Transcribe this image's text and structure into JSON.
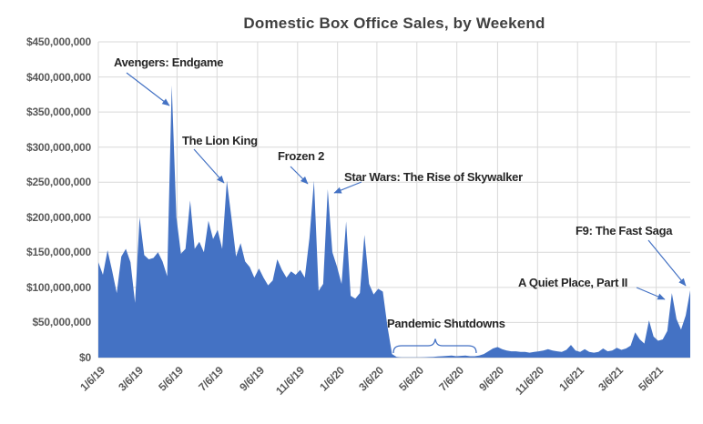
{
  "title": "Domestic Box Office Sales, by Weekend",
  "annotations": [
    {
      "id": "avengers",
      "label": "Avengers: Endgame",
      "week": "2019-04-28",
      "value_usd_millions": 388
    },
    {
      "id": "lion_king",
      "label": "The Lion King",
      "week": "2019-07-21",
      "value_usd_millions": 252
    },
    {
      "id": "frozen_2",
      "label": "Frozen 2",
      "week": "2019-12-01",
      "value_usd_millions": 252
    },
    {
      "id": "star_wars",
      "label": "Star Wars: The Rise of Skywalker",
      "week": "2019-12-22",
      "value_usd_millions": 240
    },
    {
      "id": "pandemic",
      "label": "Pandemic Shutdowns",
      "week_range": [
        "2020-03-29",
        "2020-08-02"
      ]
    },
    {
      "id": "quiet_place",
      "label": "A Quiet Place, Part II",
      "week": "2021-05-30",
      "value_usd_millions": 92
    },
    {
      "id": "f9",
      "label": "F9: The Fast Saga",
      "week": "2021-06-27",
      "value_usd_millions": 96
    }
  ],
  "chart_data": {
    "type": "area",
    "title": "Domestic Box Office Sales, by Weekend",
    "xlabel": "",
    "ylabel": "",
    "fill_color": "#4472C4",
    "annotation_color": "#4472C4",
    "gridline_color": "#D9D9D9",
    "grid": true,
    "legend": "none",
    "y_max_usd_millions": 450,
    "y_ticks": [
      {
        "label": "$450,000,000",
        "value": 450
      },
      {
        "label": "$400,000,000",
        "value": 400
      },
      {
        "label": "$350,000,000",
        "value": 350
      },
      {
        "label": "$300,000,000",
        "value": 300
      },
      {
        "label": "$250,000,000",
        "value": 250
      },
      {
        "label": "$200,000,000",
        "value": 200
      },
      {
        "label": "$150,000,000",
        "value": 150
      },
      {
        "label": "$100,000,000",
        "value": 100
      },
      {
        "label": "$50,000,000",
        "value": 50
      },
      {
        "label": "$0",
        "value": 0
      }
    ],
    "x_ticks": [
      {
        "label": "1/6/19",
        "day": 0
      },
      {
        "label": "3/6/19",
        "day": 59
      },
      {
        "label": "5/6/19",
        "day": 120
      },
      {
        "label": "7/6/19",
        "day": 181
      },
      {
        "label": "9/6/19",
        "day": 243
      },
      {
        "label": "11/6/19",
        "day": 304
      },
      {
        "label": "1/6/20",
        "day": 365
      },
      {
        "label": "3/6/20",
        "day": 425
      },
      {
        "label": "5/6/20",
        "day": 486
      },
      {
        "label": "7/6/20",
        "day": 547
      },
      {
        "label": "9/6/20",
        "day": 609
      },
      {
        "label": "11/6/20",
        "day": 670
      },
      {
        "label": "1/6/21",
        "day": 731
      },
      {
        "label": "3/6/21",
        "day": 790
      },
      {
        "label": "5/6/21",
        "day": 851
      }
    ],
    "x_total_days": 903,
    "x_unit": "weekly, Sundays from 1/6/19 through 6/27/21",
    "values_usd_millions": [
      136,
      118,
      153,
      124,
      92,
      144,
      155,
      136,
      78,
      200,
      146,
      140,
      142,
      150,
      137,
      116,
      388,
      200,
      148,
      155,
      224,
      155,
      165,
      150,
      195,
      169,
      182,
      155,
      252,
      200,
      144,
      163,
      137,
      129,
      114,
      127,
      114,
      103,
      110,
      140,
      125,
      114,
      123,
      118,
      125,
      114,
      170,
      252,
      95,
      105,
      240,
      150,
      130,
      105,
      194,
      88,
      84,
      92,
      175,
      105,
      90,
      98,
      94,
      45,
      5,
      1,
      0.3,
      0.2,
      0.2,
      0.3,
      0.3,
      0.5,
      0.8,
      1,
      1.5,
      2,
      2.5,
      3,
      2,
      2.5,
      3,
      2,
      2,
      3,
      5,
      9,
      13,
      15,
      12,
      10,
      9,
      9,
      8,
      8,
      7,
      8,
      9,
      10,
      12,
      10,
      9,
      8,
      11,
      18,
      10,
      8,
      12,
      8,
      7,
      8,
      13,
      9,
      10,
      14,
      11,
      13,
      17,
      36,
      26,
      20,
      53,
      30,
      24,
      26,
      38,
      92,
      55,
      40,
      60,
      96
    ]
  }
}
